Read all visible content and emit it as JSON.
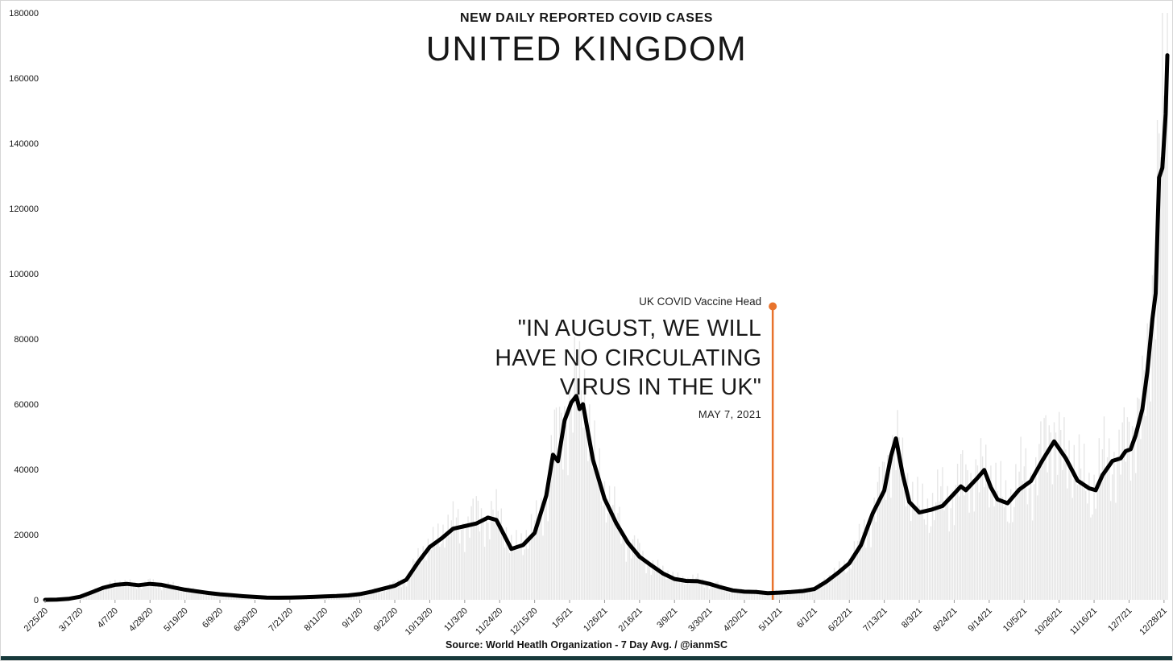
{
  "chart_data": {
    "type": "line",
    "title": "NEW DAILY REPORTED COVID CASES",
    "subtitle": "UNITED KINGDOM",
    "source": "Source: World Heatlh Organization - 7 Day Avg. / @ianmSC",
    "x_start": "2/25/20",
    "x_end": "12/30/21",
    "ylim": [
      0,
      180000
    ],
    "y_ticks": [
      0,
      20000,
      40000,
      60000,
      80000,
      100000,
      120000,
      140000,
      160000,
      180000
    ],
    "x_tick_labels": [
      "2/25/20",
      "3/17/20",
      "4/7/20",
      "4/28/20",
      "5/19/20",
      "6/9/20",
      "6/30/20",
      "7/21/20",
      "8/11/20",
      "9/1/20",
      "9/22/20",
      "10/13/20",
      "11/3/20",
      "11/24/20",
      "12/15/20",
      "1/5/21",
      "1/26/21",
      "2/16/21",
      "3/9/21",
      "3/30/21",
      "4/20/21",
      "5/11/21",
      "6/1/21",
      "6/22/21",
      "7/13/21",
      "8/3/21",
      "8/24/21",
      "9/14/21",
      "10/5/21",
      "10/26/21",
      "11/16/21",
      "12/7/21",
      "12/28/21"
    ],
    "grid": false,
    "legend": "none",
    "line_color": "#000000",
    "line_width": 5,
    "background_bars": {
      "present": true,
      "color": "#e6e6e6",
      "meaning": "daily reported values behind the 7-day average"
    },
    "annotation": {
      "source_label": "UK COVID Vaccine Head",
      "quote_lines": [
        "\"IN AUGUST, WE WILL",
        "HAVE NO CIRCULATING",
        "VIRUS IN THE UK\""
      ],
      "date_label": "MAY 7, 2021",
      "marker_date": "5/7/21",
      "marker_top_value": 90000,
      "marker_color": "#E8732C"
    },
    "series": [
      {
        "name": "7 Day Avg",
        "points": [
          [
            "2/25/20",
            0
          ],
          [
            "3/3/20",
            50
          ],
          [
            "3/10/20",
            300
          ],
          [
            "3/17/20",
            950
          ],
          [
            "3/24/20",
            2300
          ],
          [
            "3/31/20",
            3700
          ],
          [
            "4/7/20",
            4600
          ],
          [
            "4/14/20",
            4900
          ],
          [
            "4/21/20",
            4500
          ],
          [
            "4/28/20",
            4900
          ],
          [
            "5/5/20",
            4600
          ],
          [
            "5/12/20",
            3800
          ],
          [
            "5/19/20",
            3100
          ],
          [
            "5/26/20",
            2600
          ],
          [
            "6/2/20",
            2100
          ],
          [
            "6/9/20",
            1700
          ],
          [
            "6/16/20",
            1400
          ],
          [
            "6/23/20",
            1100
          ],
          [
            "6/30/20",
            900
          ],
          [
            "7/7/20",
            700
          ],
          [
            "7/14/20",
            650
          ],
          [
            "7/21/20",
            700
          ],
          [
            "7/28/20",
            760
          ],
          [
            "8/4/20",
            880
          ],
          [
            "8/11/20",
            1050
          ],
          [
            "8/18/20",
            1150
          ],
          [
            "8/25/20",
            1350
          ],
          [
            "9/1/20",
            1750
          ],
          [
            "9/8/20",
            2500
          ],
          [
            "9/15/20",
            3400
          ],
          [
            "9/22/20",
            4300
          ],
          [
            "9/29/20",
            6200
          ],
          [
            "10/6/20",
            11500
          ],
          [
            "10/13/20",
            16200
          ],
          [
            "10/20/20",
            18800
          ],
          [
            "10/27/20",
            21800
          ],
          [
            "11/3/20",
            22600
          ],
          [
            "11/10/20",
            23400
          ],
          [
            "11/17/20",
            25200
          ],
          [
            "11/22/20",
            24500
          ],
          [
            "12/1/20",
            15600
          ],
          [
            "12/8/20",
            16800
          ],
          [
            "12/15/20",
            20500
          ],
          [
            "12/22/20",
            32000
          ],
          [
            "12/26/20",
            44500
          ],
          [
            "12/29/20",
            42500
          ],
          [
            "1/2/21",
            55000
          ],
          [
            "1/6/21",
            60500
          ],
          [
            "1/9/21",
            62500
          ],
          [
            "1/11/21",
            58500
          ],
          [
            "1/13/21",
            60000
          ],
          [
            "1/19/21",
            43000
          ],
          [
            "1/26/21",
            31000
          ],
          [
            "2/2/21",
            23500
          ],
          [
            "2/9/21",
            17500
          ],
          [
            "2/16/21",
            13200
          ],
          [
            "2/23/21",
            10600
          ],
          [
            "3/2/21",
            8100
          ],
          [
            "3/9/21",
            6400
          ],
          [
            "3/16/21",
            5800
          ],
          [
            "3/23/21",
            5700
          ],
          [
            "3/30/21",
            4900
          ],
          [
            "4/6/21",
            3800
          ],
          [
            "4/13/21",
            2900
          ],
          [
            "4/20/21",
            2500
          ],
          [
            "4/27/21",
            2400
          ],
          [
            "5/4/21",
            2050
          ],
          [
            "5/11/21",
            2200
          ],
          [
            "5/18/21",
            2400
          ],
          [
            "5/25/21",
            2700
          ],
          [
            "6/1/21",
            3300
          ],
          [
            "6/8/21",
            5500
          ],
          [
            "6/15/21",
            8200
          ],
          [
            "6/22/21",
            11200
          ],
          [
            "6/29/21",
            16800
          ],
          [
            "7/6/21",
            26500
          ],
          [
            "7/13/21",
            33500
          ],
          [
            "7/17/21",
            44000
          ],
          [
            "7/20/21",
            49500
          ],
          [
            "7/24/21",
            38500
          ],
          [
            "7/28/21",
            30000
          ],
          [
            "8/3/21",
            26800
          ],
          [
            "8/10/21",
            27600
          ],
          [
            "8/17/21",
            28800
          ],
          [
            "8/24/21",
            32600
          ],
          [
            "8/28/21",
            34800
          ],
          [
            "8/31/21",
            33600
          ],
          [
            "9/7/21",
            37400
          ],
          [
            "9/11/21",
            39800
          ],
          [
            "9/15/21",
            34500
          ],
          [
            "9/19/21",
            30800
          ],
          [
            "9/25/21",
            29600
          ],
          [
            "10/2/21",
            33800
          ],
          [
            "10/9/21",
            36400
          ],
          [
            "10/16/21",
            42800
          ],
          [
            "10/23/21",
            48600
          ],
          [
            "10/30/21",
            43400
          ],
          [
            "11/6/21",
            36600
          ],
          [
            "11/13/21",
            34200
          ],
          [
            "11/17/21",
            33600
          ],
          [
            "11/21/21",
            38200
          ],
          [
            "11/27/21",
            42600
          ],
          [
            "12/2/21",
            43400
          ],
          [
            "12/5/21",
            45600
          ],
          [
            "12/8/21",
            46200
          ],
          [
            "12/11/21",
            50500
          ],
          [
            "12/15/21",
            58500
          ],
          [
            "12/18/21",
            70000
          ],
          [
            "12/21/21",
            86000
          ],
          [
            "12/23/21",
            94000
          ],
          [
            "12/24/21",
            112000
          ],
          [
            "12/25/21",
            129500
          ],
          [
            "12/27/21",
            132500
          ],
          [
            "12/29/21",
            149000
          ],
          [
            "12/30/21",
            167000
          ]
        ]
      }
    ]
  }
}
